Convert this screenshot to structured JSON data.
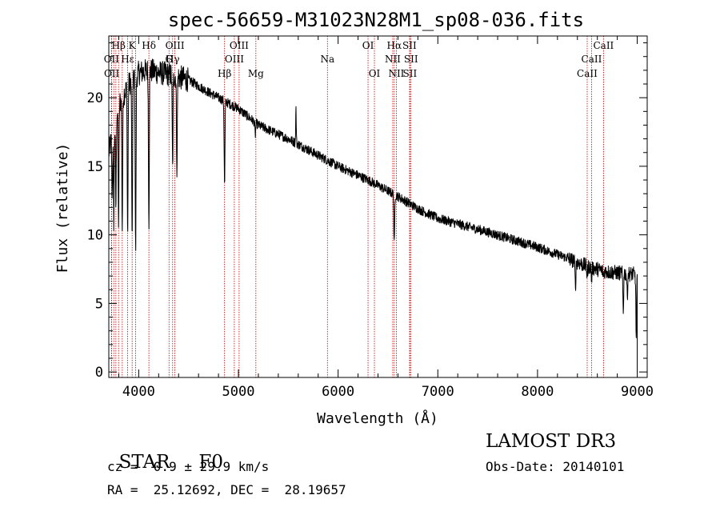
{
  "chart_data": {
    "type": "line",
    "title": "spec-56659-M31023N28M1_sp08-036.fits",
    "xlabel": "Wavelength (Å)",
    "ylabel": "Flux (relative)",
    "xlim": [
      3700,
      9100
    ],
    "ylim": [
      -0.4,
      24.5
    ],
    "xticks": [
      4000,
      5000,
      6000,
      7000,
      8000,
      9000
    ],
    "xtick_labels": [
      "4000",
      "5000",
      "6000",
      "7000",
      "8000",
      "9000"
    ],
    "yticks": [
      0,
      5,
      10,
      15,
      20
    ],
    "ytick_labels": [
      "0",
      "5",
      "10",
      "15",
      "20"
    ],
    "series": [
      {
        "name": "spectrum",
        "continuum": [
          [
            3700,
            16
          ],
          [
            3800,
            19.5
          ],
          [
            3900,
            21
          ],
          [
            4000,
            21.8
          ],
          [
            4100,
            22
          ],
          [
            4300,
            21.7
          ],
          [
            4500,
            21.3
          ],
          [
            4700,
            20.4
          ],
          [
            5000,
            19.2
          ],
          [
            5200,
            18
          ],
          [
            5500,
            17
          ],
          [
            5800,
            15.8
          ],
          [
            6000,
            15
          ],
          [
            6300,
            14
          ],
          [
            6600,
            12.8
          ],
          [
            6800,
            11.9
          ],
          [
            7000,
            11.2
          ],
          [
            7500,
            10.2
          ],
          [
            8000,
            9.1
          ],
          [
            8300,
            8.3
          ],
          [
            8500,
            7.7
          ],
          [
            8700,
            7.3
          ],
          [
            9000,
            7.1
          ]
        ],
        "absorption": [
          [
            3734,
            13
          ],
          [
            3750,
            11
          ],
          [
            3771,
            12
          ],
          [
            3798,
            11
          ],
          [
            3835,
            10.5
          ],
          [
            3889,
            10
          ],
          [
            3934,
            9
          ],
          [
            3969,
            8.8
          ],
          [
            4102,
            11
          ],
          [
            4340,
            14.8
          ],
          [
            4383,
            15
          ],
          [
            4861,
            13.5
          ],
          [
            5169,
            17.3
          ],
          [
            6563,
            9.3
          ],
          [
            8380,
            6.1
          ],
          [
            8498,
            7
          ],
          [
            8542,
            6.8
          ],
          [
            8662,
            7
          ],
          [
            8860,
            4.5
          ],
          [
            8900,
            5.5
          ],
          [
            8990,
            2.5
          ]
        ],
        "emission": [
          [
            5577,
            19.2
          ]
        ]
      }
    ],
    "lines": [
      {
        "label": "Hβ",
        "x": 3798,
        "row": 1
      },
      {
        "label": "K",
        "x": 3934,
        "row": 1
      },
      {
        "label": "Hδ",
        "x": 4102,
        "row": 1
      },
      {
        "label": "OIII",
        "x": 4363,
        "row": 1
      },
      {
        "label": "OIII",
        "x": 5007,
        "row": 1
      },
      {
        "label": "OI",
        "x": 6300,
        "row": 1
      },
      {
        "label": "Hα",
        "x": 6563,
        "row": 1
      },
      {
        "label": "SII",
        "x": 6716,
        "row": 1
      },
      {
        "label": "CaII",
        "x": 8662,
        "row": 1
      },
      {
        "label": "OII",
        "x": 3727,
        "row": 2
      },
      {
        "label": "Hε",
        "x": 3889,
        "row": 2
      },
      {
        "label": "G",
        "x": 4304,
        "row": 2
      },
      {
        "label": "Hγ",
        "x": 4340,
        "row": 2
      },
      {
        "label": "OIII",
        "x": 4959,
        "row": 2
      },
      {
        "label": "Na",
        "x": 5893,
        "row": 2
      },
      {
        "label": "NII",
        "x": 6548,
        "row": 2
      },
      {
        "label": "SII",
        "x": 6731,
        "row": 2
      },
      {
        "label": "CaII",
        "x": 8542,
        "row": 2
      },
      {
        "label": "OII",
        "x": 3729,
        "row": 3
      },
      {
        "label": "Hβ",
        "x": 4861,
        "row": 3
      },
      {
        "label": "Mg",
        "x": 5175,
        "row": 3
      },
      {
        "label": "OI",
        "x": 6364,
        "row": 3
      },
      {
        "label": "NII",
        "x": 6584,
        "row": 3
      },
      {
        "label": "SII",
        "x": 6720,
        "row": 3
      },
      {
        "label": "CaII",
        "x": 8498,
        "row": 3
      }
    ],
    "line_markers": [
      3727,
      3729,
      3750,
      3771,
      3798,
      3835,
      3889,
      3934,
      3969,
      4102,
      4304,
      4340,
      4363,
      4861,
      4959,
      5007,
      5175,
      5893,
      6300,
      6364,
      6548,
      6563,
      6584,
      6716,
      6720,
      6731,
      8498,
      8542,
      8662
    ]
  },
  "info": {
    "object_type": "STAR",
    "subclass": "F0",
    "survey": "LAMOST DR3",
    "redshift": "cz =  0.9 ± 29.9 km/s",
    "obs_date": "Obs-Date: 20140101",
    "coords": "RA =  25.12692, DEC =  28.19657"
  }
}
